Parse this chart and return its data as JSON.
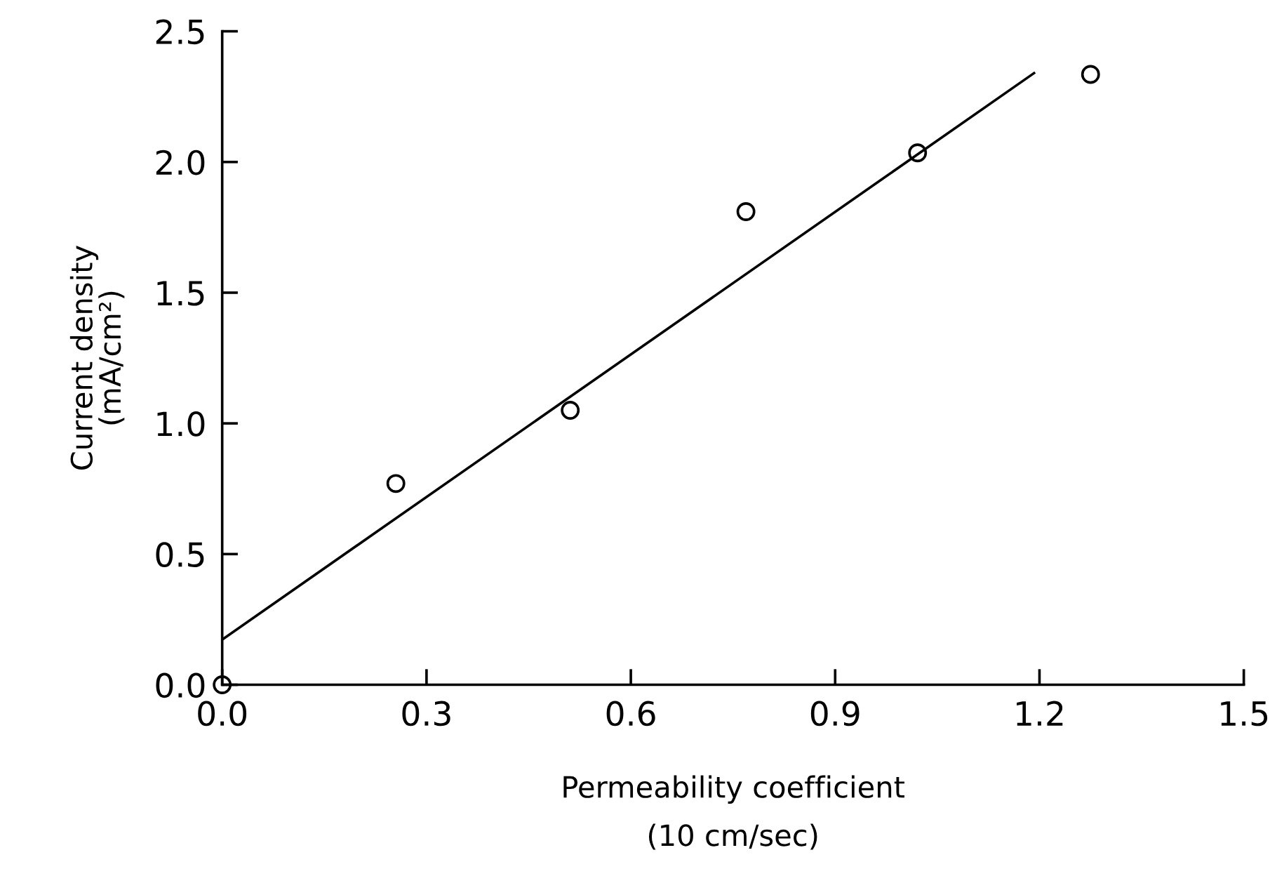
{
  "chart_data": {
    "type": "scatter",
    "xlabel": "Permeability coefficient\n(10 cm/sec)",
    "ylabel": "Current density\n(mA/cm²)",
    "series": [
      {
        "color": "#000000",
        "marker": "circle",
        "x": [
          0.0,
          0.255,
          0.511,
          0.769,
          1.021,
          1.275
        ],
        "values": [
          0.0,
          0.77,
          1.05,
          1.81,
          2.035,
          2.335
        ]
      },
      {
        "type": "line",
        "color": "#000000",
        "marker": "none",
        "line_style": "solid",
        "x": [
          0.0,
          1.192
        ],
        "values": [
          0.173,
          2.34
        ]
      }
    ],
    "xlim": [
      0.0,
      1.5
    ],
    "ylim": [
      0.0,
      2.5
    ],
    "xticks": [
      {
        "value": 0.0,
        "label": "0.0"
      },
      {
        "value": 0.3,
        "label": "0.3"
      },
      {
        "value": 0.6,
        "label": "0.6"
      },
      {
        "value": 0.9,
        "label": "0.9"
      },
      {
        "value": 1.2,
        "label": "1.2"
      },
      {
        "value": 1.5,
        "label": "1.5"
      }
    ],
    "yticks": [
      {
        "value": 0.0,
        "label": "0.0"
      },
      {
        "value": 0.5,
        "label": "0.5"
      },
      {
        "value": 1.0,
        "label": "1.0"
      },
      {
        "value": 1.5,
        "label": "1.5"
      },
      {
        "value": 2.0,
        "label": "2.0"
      },
      {
        "value": 2.5,
        "label": "2.5"
      }
    ],
    "grid": false,
    "legend": false
  }
}
